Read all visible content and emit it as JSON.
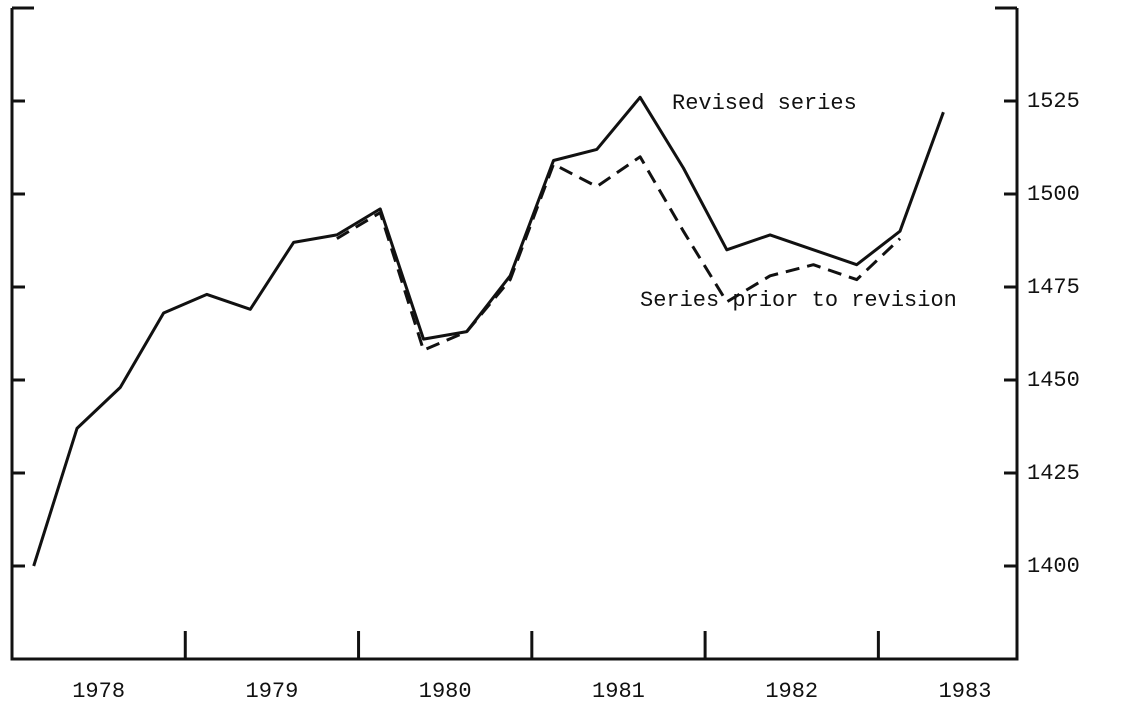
{
  "chart_data": {
    "type": "line",
    "x": [
      1978.125,
      1978.375,
      1978.625,
      1978.875,
      1979.125,
      1979.375,
      1979.625,
      1979.875,
      1980.125,
      1980.375,
      1980.625,
      1980.875,
      1981.125,
      1981.375,
      1981.625,
      1981.875,
      1982.125,
      1982.375,
      1982.625,
      1982.875,
      1983.125,
      1983.375
    ],
    "series": [
      {
        "name": "Revised series",
        "color": "#111111",
        "dash": false,
        "values": [
          1400,
          1437,
          1448,
          1468,
          1473,
          1469,
          1487,
          1489,
          1496,
          1461,
          1463,
          1478,
          1509,
          1512,
          1526,
          1507,
          1485,
          1489,
          1485,
          1481,
          1490,
          1522
        ]
      },
      {
        "name": "Series prior to revision",
        "color": "#111111",
        "dash": true,
        "values": [
          null,
          null,
          null,
          null,
          null,
          null,
          null,
          1488,
          1495,
          1458,
          1463,
          1477,
          1508,
          1502,
          1510,
          1490,
          1471,
          1478,
          1481,
          1477,
          1488,
          null
        ]
      }
    ],
    "xlim": [
      1978,
      1983.8
    ],
    "xticks": [
      {
        "value": 1978.5,
        "label": "1978"
      },
      {
        "value": 1979.5,
        "label": "1979"
      },
      {
        "value": 1980.5,
        "label": "1980"
      },
      {
        "value": 1981.5,
        "label": "1981"
      },
      {
        "value": 1982.5,
        "label": "1982"
      },
      {
        "value": 1983.5,
        "label": "1983"
      }
    ],
    "xtick_marks": [
      1979,
      1980,
      1981,
      1982,
      1983
    ],
    "ylim": [
      1375,
      1550
    ],
    "yticks": [
      1400,
      1425,
      1450,
      1475,
      1500,
      1525
    ],
    "y_axis_side": "right"
  }
}
